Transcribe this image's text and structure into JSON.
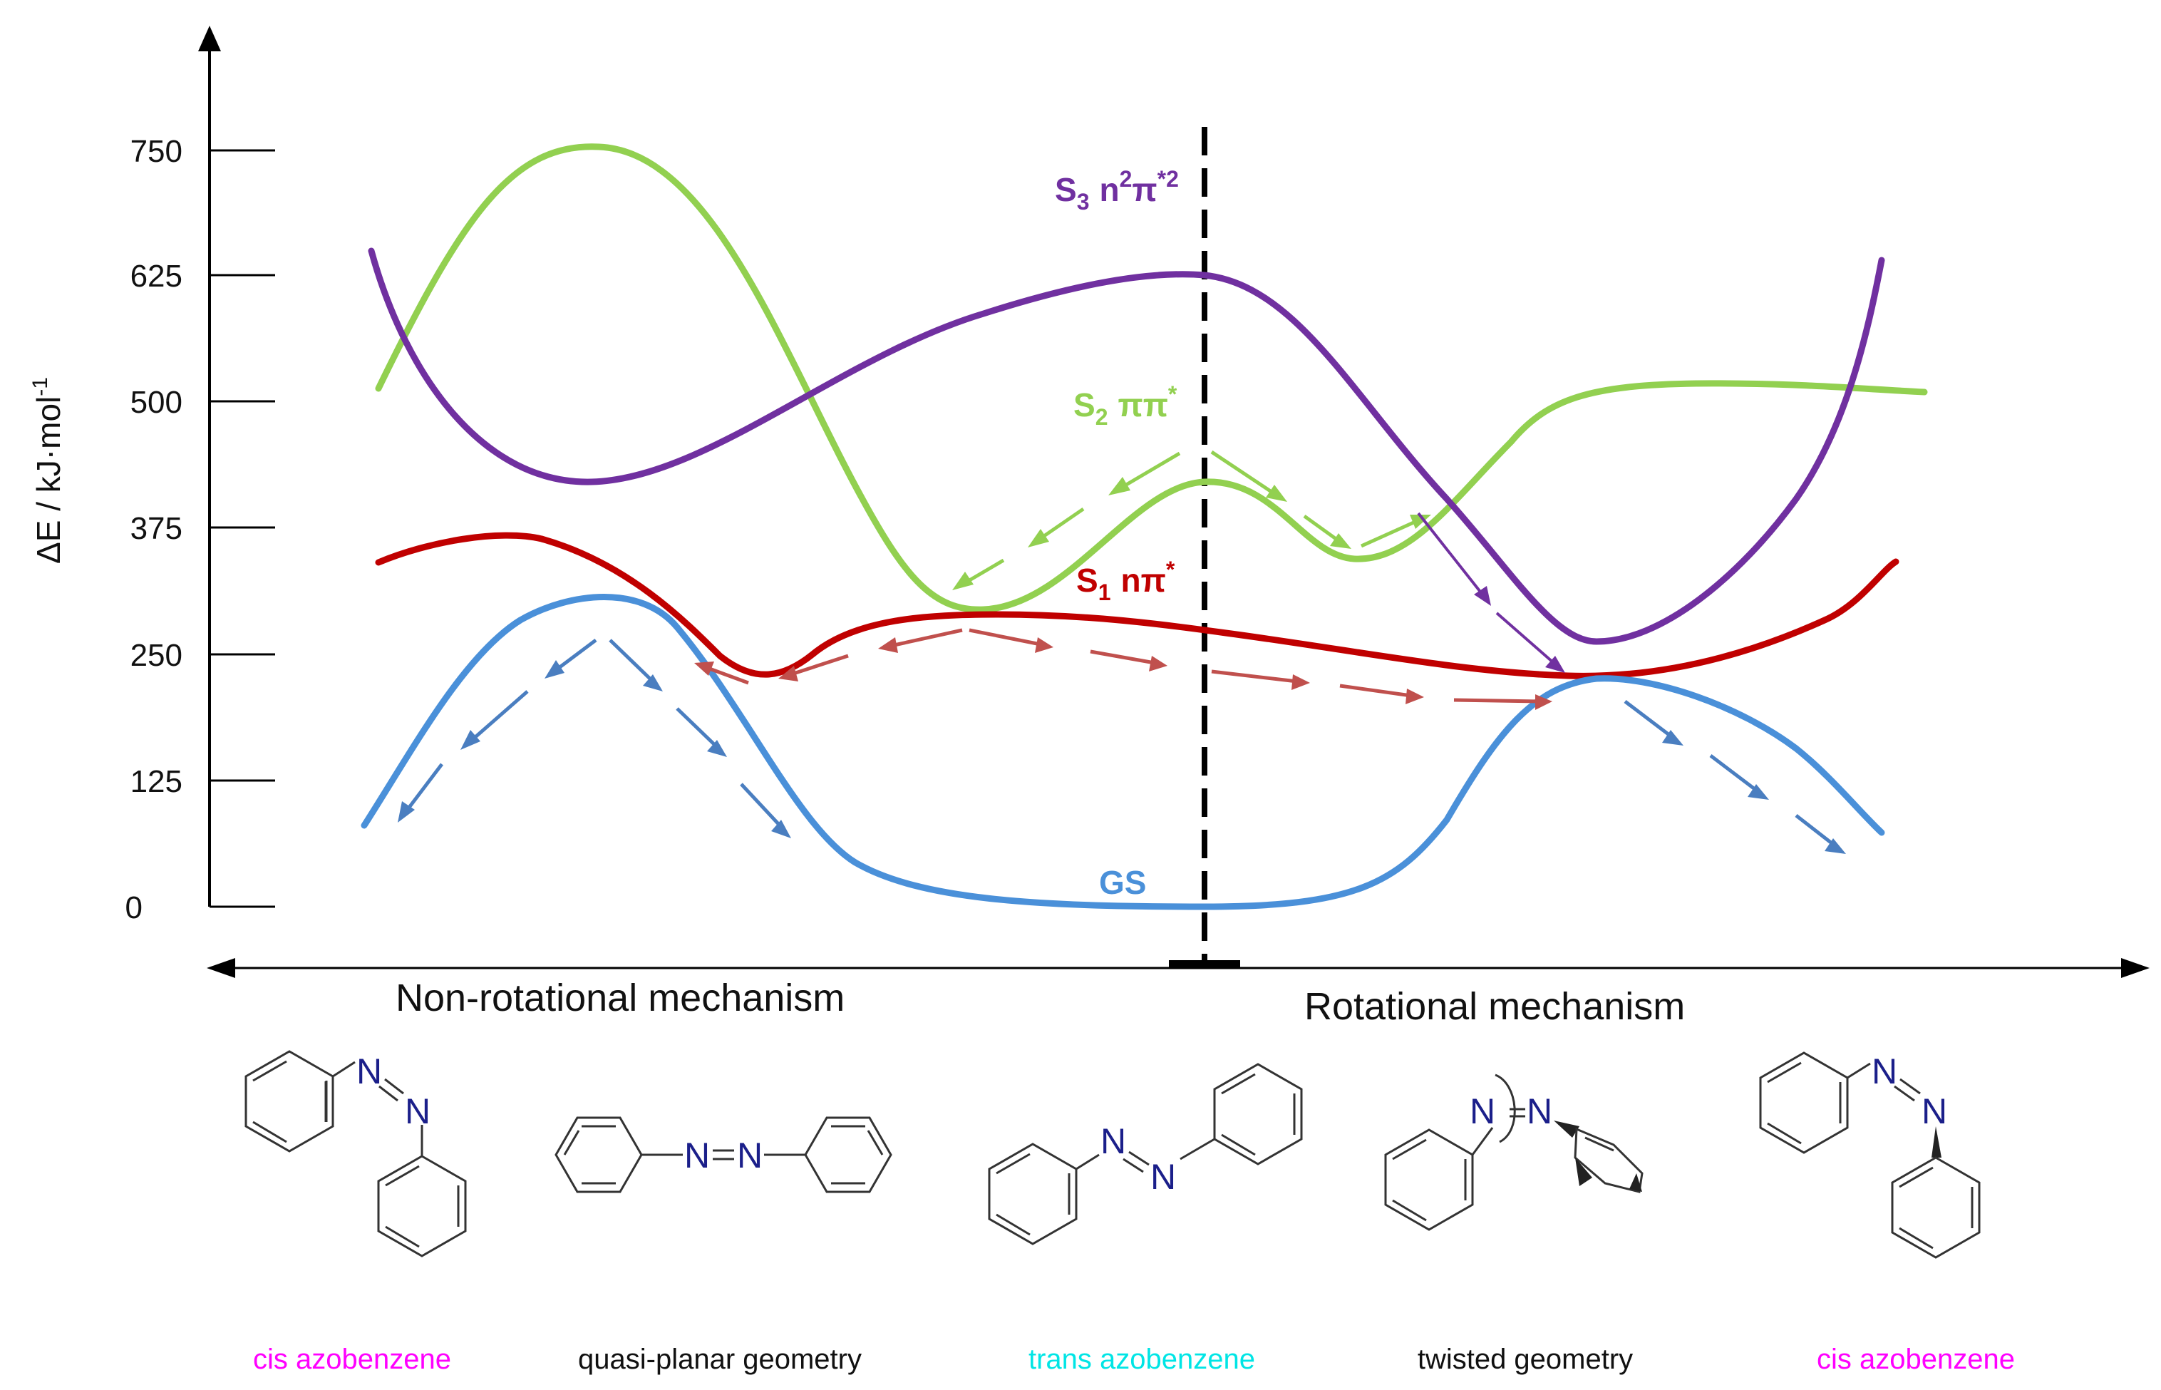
{
  "y_axis": {
    "label": "ΔE / kJ·mol",
    "label_superscript": "-1",
    "ticks": [
      "750",
      "625",
      "500",
      "375",
      "250",
      "125",
      "0"
    ]
  },
  "x_axis": {
    "left_label": "Non-rotational mechanism",
    "right_label": "Rotational mechanism"
  },
  "states": {
    "s3": {
      "label": "S",
      "sub": "3",
      "config": "n",
      "sup1": "2",
      "mid": "π",
      "sup2": "*2",
      "color": "#7030A0"
    },
    "s2": {
      "label": "S",
      "sub": "2",
      "config": "ππ",
      "sup": "*",
      "color": "#92D050"
    },
    "s1": {
      "label": "S",
      "sub": "1",
      "config": "nπ",
      "sup": "*",
      "color": "#C00000"
    },
    "gs": {
      "label": "GS",
      "color": "#4A90D9"
    }
  },
  "atoms": {
    "nitrogen": "N"
  },
  "structures": [
    {
      "caption": "cis azobenzene",
      "color": "#FF00FF"
    },
    {
      "caption": "quasi-planar geometry",
      "color": "#111111"
    },
    {
      "caption": "trans azobenzene",
      "color": "#00E5E5"
    },
    {
      "caption": "twisted geometry",
      "color": "#111111"
    },
    {
      "caption": "cis azobenzene",
      "color": "#FF00FF"
    }
  ]
}
